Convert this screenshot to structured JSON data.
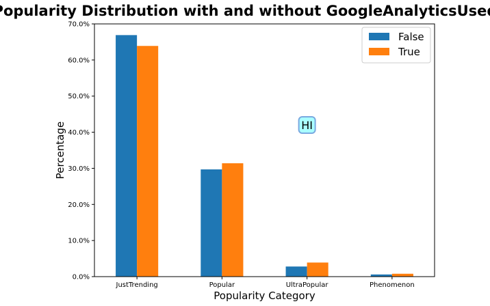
{
  "chart_data": {
    "type": "bar",
    "title": "Popularity Distribution with and without GoogleAnalyticsUsed",
    "xlabel": "Popularity Category",
    "ylabel": "Percentage",
    "categories": [
      "JustTrending",
      "Popular",
      "UltraPopular",
      "Phenomenon"
    ],
    "series": [
      {
        "name": "False",
        "values": [
          66.9,
          29.7,
          2.8,
          0.6
        ],
        "color": "#1f77b4"
      },
      {
        "name": "True",
        "values": [
          63.9,
          31.4,
          3.9,
          0.8
        ],
        "color": "#ff7f0e"
      }
    ],
    "ylim": [
      0,
      70
    ],
    "yticks": [
      0,
      10,
      20,
      30,
      40,
      50,
      60,
      70
    ],
    "ytick_labels": [
      "0.0%",
      "10.0%",
      "20.0%",
      "30.0%",
      "40.0%",
      "50.0%",
      "60.0%",
      "70.0%"
    ],
    "grid": false,
    "legend_position": "top-right",
    "annotation": {
      "text": "HI",
      "x": "UltraPopular",
      "y": 42
    }
  }
}
